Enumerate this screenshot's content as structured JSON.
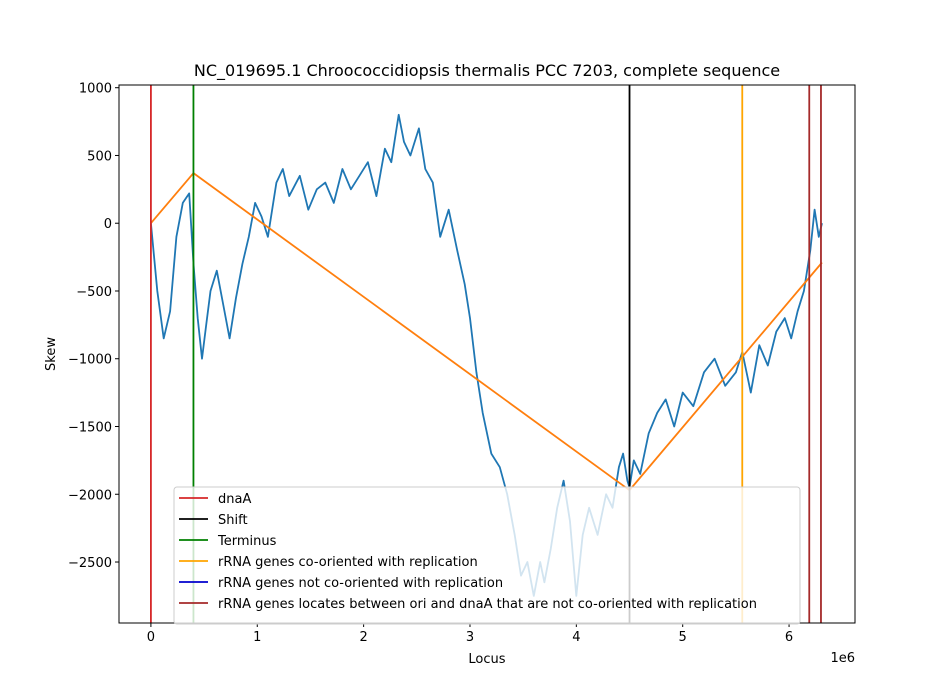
{
  "chart_data": {
    "type": "line",
    "title": "NC_019695.1 Chroococcidiopsis thermalis PCC 7203, complete sequence",
    "xlabel": "Locus",
    "ylabel": "Skew",
    "x_scale_label": "1e6",
    "xlim": [
      -300000,
      6620000
    ],
    "ylim": [
      -2950,
      1020
    ],
    "x_ticks": [
      0,
      1000000,
      2000000,
      3000000,
      4000000,
      5000000,
      6000000
    ],
    "x_tick_labels": [
      "0",
      "1",
      "2",
      "3",
      "4",
      "5",
      "6"
    ],
    "y_ticks": [
      1000,
      500,
      0,
      -500,
      -1000,
      -1500,
      -2000,
      -2500
    ],
    "y_tick_labels": [
      "1000",
      "500",
      "0",
      "−500",
      "−1000",
      "−1500",
      "−2000",
      "−2500"
    ],
    "grid": false,
    "legend_position": "bottom-center",
    "series": [
      {
        "color": "#1f77b4",
        "x": [
          0,
          60000,
          120000,
          180000,
          240000,
          300000,
          360000,
          400000,
          440000,
          480000,
          520000,
          560000,
          620000,
          680000,
          740000,
          800000,
          860000,
          920000,
          980000,
          1040000,
          1100000,
          1180000,
          1240000,
          1300000,
          1400000,
          1480000,
          1560000,
          1640000,
          1720000,
          1800000,
          1880000,
          1960000,
          2040000,
          2120000,
          2200000,
          2260000,
          2300000,
          2330000,
          2380000,
          2440000,
          2520000,
          2580000,
          2650000,
          2720000,
          2800000,
          2880000,
          2950000,
          3000000,
          3060000,
          3120000,
          3200000,
          3280000,
          3350000,
          3420000,
          3480000,
          3540000,
          3600000,
          3660000,
          3700000,
          3760000,
          3820000,
          3880000,
          3940000,
          4000000,
          4060000,
          4120000,
          4200000,
          4280000,
          4340000,
          4400000,
          4440000,
          4480000,
          4500000,
          4540000,
          4600000,
          4680000,
          4760000,
          4840000,
          4920000,
          5000000,
          5100000,
          5200000,
          5300000,
          5400000,
          5500000,
          5560000,
          5640000,
          5720000,
          5800000,
          5880000,
          5960000,
          6020000,
          6080000,
          6140000,
          6200000,
          6240000,
          6280000,
          6310000
        ],
        "values": [
          0,
          -500,
          -850,
          -650,
          -100,
          150,
          220,
          -300,
          -700,
          -1000,
          -750,
          -500,
          -350,
          -600,
          -850,
          -550,
          -300,
          -100,
          150,
          50,
          -100,
          300,
          400,
          200,
          350,
          100,
          250,
          300,
          150,
          400,
          250,
          350,
          450,
          200,
          550,
          450,
          650,
          800,
          600,
          500,
          700,
          400,
          300,
          -100,
          100,
          -200,
          -450,
          -700,
          -1100,
          -1400,
          -1700,
          -1800,
          -2000,
          -2300,
          -2600,
          -2500,
          -2750,
          -2500,
          -2650,
          -2400,
          -2100,
          -1900,
          -2200,
          -2750,
          -2300,
          -2100,
          -2300,
          -2000,
          -2100,
          -1800,
          -1700,
          -1900,
          -1950,
          -1750,
          -1850,
          -1550,
          -1400,
          -1300,
          -1500,
          -1250,
          -1350,
          -1100,
          -1000,
          -1200,
          -1100,
          -950,
          -1250,
          -900,
          -1050,
          -800,
          -700,
          -850,
          -650,
          -500,
          -200,
          100,
          -100,
          0
        ]
      },
      {
        "color": "#ff7f0e",
        "x": [
          0,
          400000,
          4500000,
          6310000
        ],
        "values": [
          0,
          370,
          -1970,
          -290
        ]
      }
    ],
    "vertical_lines": [
      {
        "x": 0,
        "color": "#d62728"
      },
      {
        "x": 400000,
        "color": "#008000"
      },
      {
        "x": 4500000,
        "color": "#000000"
      },
      {
        "x": 5560000,
        "color": "#ffa500"
      },
      {
        "x": 6190000,
        "color": "#a52a2a"
      },
      {
        "x": 6300000,
        "color": "#a52a2a"
      }
    ],
    "legend": [
      {
        "label": "dnaA",
        "color": "#d62728"
      },
      {
        "label": "Shift",
        "color": "#000000"
      },
      {
        "label": "Terminus",
        "color": "#008000"
      },
      {
        "label": "rRNA genes co-oriented with replication",
        "color": "#ffa500"
      },
      {
        "label": "rRNA genes not co-oriented with replication",
        "color": "#0000cd"
      },
      {
        "label": "rRNA genes locates between ori and dnaA that are not co-oriented with replication",
        "color": "#a52a2a"
      }
    ]
  }
}
